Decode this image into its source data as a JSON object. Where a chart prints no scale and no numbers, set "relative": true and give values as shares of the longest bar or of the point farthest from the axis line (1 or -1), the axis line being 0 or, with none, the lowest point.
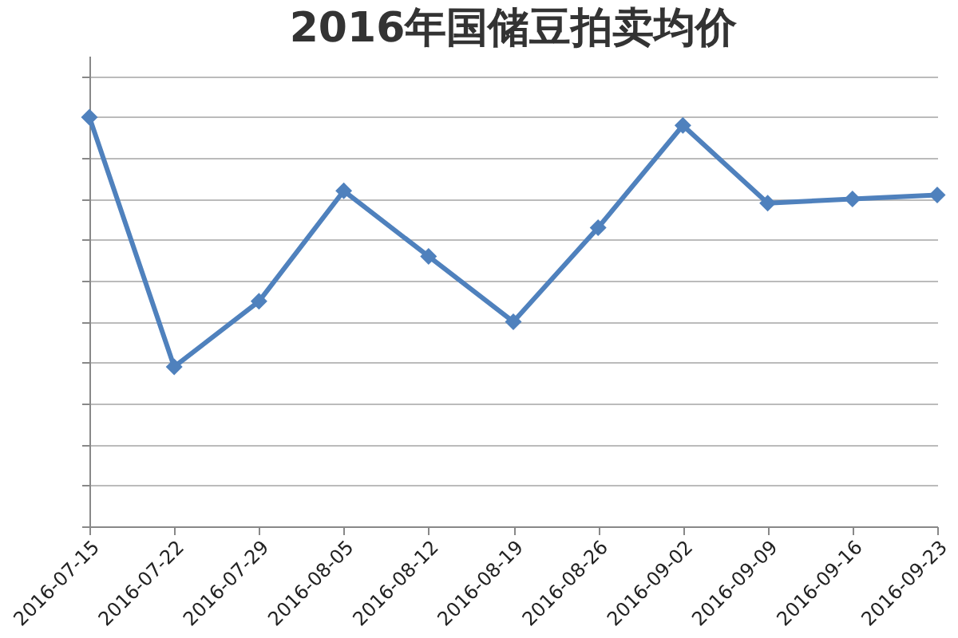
{
  "chart_data": {
    "type": "line",
    "title": "2016年国储豆拍卖均价",
    "relative": true,
    "categories": [
      "2016-07-15",
      "2016-07-22",
      "2016-07-29",
      "2016-08-05",
      "2016-08-12",
      "2016-08-19",
      "2016-08-26",
      "2016-09-02",
      "2016-09-09",
      "2016-09-16",
      "2016-09-23"
    ],
    "series": [
      {
        "color": "#4f81bd",
        "values": [
          1.0,
          0.39,
          0.55,
          0.82,
          0.66,
          0.5,
          0.73,
          0.98,
          0.79,
          0.8,
          0.81
        ]
      }
    ],
    "grid": "y",
    "marker": "diamond",
    "line_style": "solid"
  }
}
